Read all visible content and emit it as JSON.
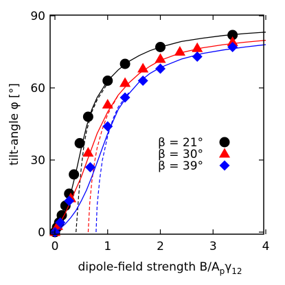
{
  "chart_data": {
    "type": "scatter",
    "xlabel_main": "dipole-field strength B/A",
    "xlabel_sub1": "p",
    "xlabel_mid": "γ",
    "xlabel_sub2": "12",
    "ylabel": "tilt-angle φ [°]",
    "xlim": [
      -0.1,
      4
    ],
    "ylim": [
      -1,
      90
    ],
    "x_ticks": [
      0,
      1,
      2,
      3,
      4
    ],
    "y_ticks": [
      0,
      30,
      60,
      90
    ],
    "grid": false,
    "legend_position": "center-right",
    "series": [
      {
        "name": "β = 21°",
        "color": "#000000",
        "marker": "circle",
        "points": [
          [
            0,
            0
          ],
          [
            0.04,
            2
          ],
          [
            0.08,
            4
          ],
          [
            0.13,
            7
          ],
          [
            0.2,
            11
          ],
          [
            0.27,
            16
          ],
          [
            0.36,
            24
          ],
          [
            0.47,
            37
          ],
          [
            0.63,
            48
          ],
          [
            1.0,
            63
          ],
          [
            1.33,
            70
          ],
          [
            2.0,
            77
          ],
          [
            3.37,
            82
          ]
        ],
        "fit_x": [
          0,
          0.1,
          0.2,
          0.3,
          0.4,
          0.5,
          0.6,
          0.7,
          0.8,
          1.0,
          1.2,
          1.4,
          1.6,
          1.8,
          2.0,
          2.4,
          2.8,
          3.2,
          3.6,
          4.0
        ],
        "fit_y": [
          0,
          4,
          9,
          16,
          25,
          35,
          44,
          51,
          56,
          63,
          67.5,
          71,
          73.5,
          75.5,
          77,
          79.3,
          80.7,
          81.8,
          82.6,
          83.2
        ],
        "dashed_x": [
          0.4,
          0.45,
          0.5,
          0.55,
          0.6,
          0.7,
          0.8,
          1.0
        ],
        "dashed_y": [
          0,
          15,
          27,
          36,
          42,
          50,
          55,
          62
        ]
      },
      {
        "name": "β = 30°",
        "color": "#ff0000",
        "marker": "triangle",
        "points": [
          [
            0,
            0
          ],
          [
            0.05,
            2.5
          ],
          [
            0.3,
            14
          ],
          [
            0.63,
            33
          ],
          [
            1.0,
            53
          ],
          [
            1.33,
            62
          ],
          [
            1.67,
            68
          ],
          [
            2.0,
            72
          ],
          [
            2.37,
            75
          ],
          [
            2.7,
            76.5
          ],
          [
            3.37,
            79
          ]
        ],
        "fit_x": [
          0,
          0.1,
          0.2,
          0.3,
          0.4,
          0.5,
          0.6,
          0.7,
          0.8,
          1.0,
          1.2,
          1.4,
          1.6,
          1.8,
          2.0,
          2.4,
          2.8,
          3.2,
          3.6,
          4.0
        ],
        "fit_y": [
          0,
          4,
          8,
          13,
          18,
          23,
          29,
          35,
          41,
          50,
          57,
          62,
          66,
          69,
          71.5,
          74.7,
          76.7,
          78,
          79,
          79.8
        ],
        "dashed_x": [
          0.63,
          0.66,
          0.7,
          0.75,
          0.8,
          0.9,
          1.0,
          1.2
        ],
        "dashed_y": [
          0,
          12,
          21,
          29,
          35,
          43,
          49,
          57
        ]
      },
      {
        "name": "β = 39°",
        "color": "#0000ff",
        "marker": "diamond",
        "points": [
          [
            0,
            0
          ],
          [
            0.1,
            4
          ],
          [
            0.27,
            13
          ],
          [
            0.67,
            27
          ],
          [
            1.0,
            44
          ],
          [
            1.33,
            56
          ],
          [
            1.67,
            63
          ],
          [
            2.0,
            68
          ],
          [
            2.7,
            73
          ],
          [
            3.37,
            77
          ]
        ],
        "fit_x": [
          0,
          0.1,
          0.2,
          0.3,
          0.4,
          0.5,
          0.6,
          0.7,
          0.8,
          0.9,
          1.0,
          1.2,
          1.4,
          1.6,
          1.8,
          2.0,
          2.4,
          2.8,
          3.2,
          3.6,
          4.0
        ],
        "fit_y": [
          0,
          1.5,
          3.5,
          6,
          9,
          13,
          17.5,
          23,
          29,
          35,
          41,
          51,
          57.5,
          62.5,
          66,
          68.5,
          72,
          74.3,
          75.8,
          77,
          78
        ],
        "dashed_x": [
          0.78,
          0.8,
          0.85,
          0.9,
          1.0,
          1.1,
          1.2,
          1.4
        ],
        "dashed_y": [
          0,
          11,
          22,
          30,
          40,
          47,
          52,
          58
        ]
      }
    ]
  }
}
